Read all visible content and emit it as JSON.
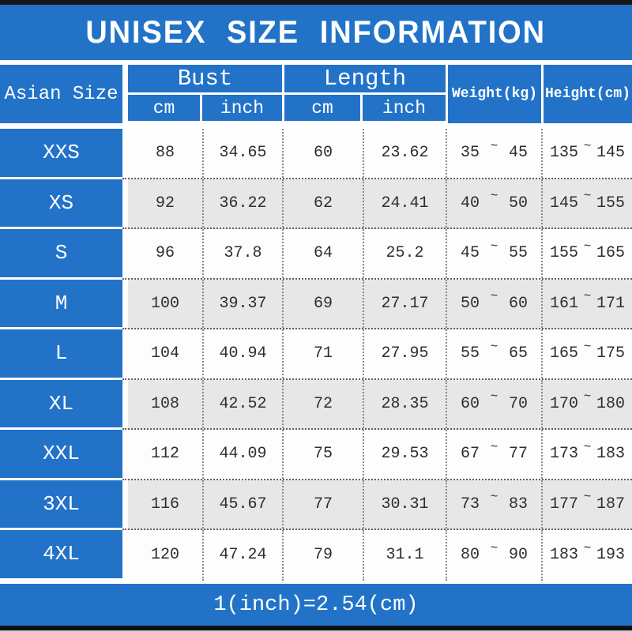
{
  "title": "UNISEX SIZE INFORMATION",
  "header": {
    "size_column": "Asian Size",
    "bust_label": "Bust",
    "length_label": "Length",
    "cm": "cm",
    "inch": "inch",
    "weight_label": "Weight(kg)",
    "height_label": "Height(cm)"
  },
  "tilde": "~",
  "rows": [
    {
      "size": "XXS",
      "bust_cm": "88",
      "bust_inch": "34.65",
      "length_cm": "60",
      "length_inch": "23.62",
      "weight_min": "35",
      "weight_max": "45",
      "height_min": "135",
      "height_max": "145"
    },
    {
      "size": "XS",
      "bust_cm": "92",
      "bust_inch": "36.22",
      "length_cm": "62",
      "length_inch": "24.41",
      "weight_min": "40",
      "weight_max": "50",
      "height_min": "145",
      "height_max": "155"
    },
    {
      "size": "S",
      "bust_cm": "96",
      "bust_inch": "37.8",
      "length_cm": "64",
      "length_inch": "25.2",
      "weight_min": "45",
      "weight_max": "55",
      "height_min": "155",
      "height_max": "165"
    },
    {
      "size": "M",
      "bust_cm": "100",
      "bust_inch": "39.37",
      "length_cm": "69",
      "length_inch": "27.17",
      "weight_min": "50",
      "weight_max": "60",
      "height_min": "161",
      "height_max": "171"
    },
    {
      "size": "L",
      "bust_cm": "104",
      "bust_inch": "40.94",
      "length_cm": "71",
      "length_inch": "27.95",
      "weight_min": "55",
      "weight_max": "65",
      "height_min": "165",
      "height_max": "175"
    },
    {
      "size": "XL",
      "bust_cm": "108",
      "bust_inch": "42.52",
      "length_cm": "72",
      "length_inch": "28.35",
      "weight_min": "60",
      "weight_max": "70",
      "height_min": "170",
      "height_max": "180"
    },
    {
      "size": "XXL",
      "bust_cm": "112",
      "bust_inch": "44.09",
      "length_cm": "75",
      "length_inch": "29.53",
      "weight_min": "67",
      "weight_max": "77",
      "height_min": "173",
      "height_max": "183"
    },
    {
      "size": "3XL",
      "bust_cm": "116",
      "bust_inch": "45.67",
      "length_cm": "77",
      "length_inch": "30.31",
      "weight_min": "73",
      "weight_max": "83",
      "height_min": "177",
      "height_max": "187"
    },
    {
      "size": "4XL",
      "bust_cm": "120",
      "bust_inch": "47.24",
      "length_cm": "79",
      "length_inch": "31.1",
      "weight_min": "80",
      "weight_max": "90",
      "height_min": "183",
      "height_max": "193"
    }
  ],
  "footer_note": "1(inch)=2.54(cm)",
  "colors": {
    "accent_blue": "#2273c8",
    "row_alt_gray": "#e7e7e7",
    "frame_dark": "#161616"
  },
  "chart_data": {
    "type": "table",
    "title": "UNISEX SIZE INFORMATION",
    "columns": [
      "Asian Size",
      "Bust cm",
      "Bust inch",
      "Length cm",
      "Length inch",
      "Weight(kg)",
      "Height(cm)"
    ],
    "rows": [
      [
        "XXS",
        88,
        34.65,
        60,
        23.62,
        "35~45",
        "135~145"
      ],
      [
        "XS",
        92,
        36.22,
        62,
        24.41,
        "40~50",
        "145~155"
      ],
      [
        "S",
        96,
        37.8,
        64,
        25.2,
        "45~55",
        "155~165"
      ],
      [
        "M",
        100,
        39.37,
        69,
        27.17,
        "50~60",
        "161~171"
      ],
      [
        "L",
        104,
        40.94,
        71,
        27.95,
        "55~65",
        "165~175"
      ],
      [
        "XL",
        108,
        42.52,
        72,
        28.35,
        "60~70",
        "170~180"
      ],
      [
        "XXL",
        112,
        44.09,
        75,
        29.53,
        "67~77",
        "173~183"
      ],
      [
        "3XL",
        116,
        45.67,
        77,
        30.31,
        "73~83",
        "177~187"
      ],
      [
        "4XL",
        120,
        47.24,
        79,
        31.1,
        "80~90",
        "183~193"
      ]
    ],
    "note": "1(inch)=2.54(cm)"
  }
}
